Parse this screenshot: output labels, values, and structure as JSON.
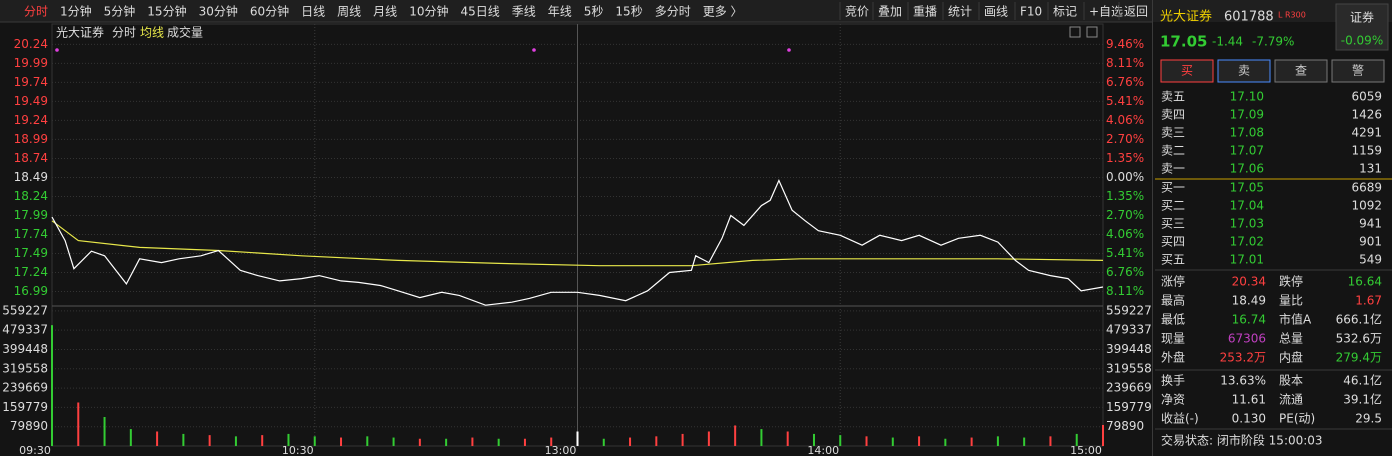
{
  "toolbar": {
    "left": [
      "分时",
      "1分钟",
      "5分钟",
      "15分钟",
      "30分钟",
      "60分钟",
      "日线",
      "周线",
      "月线",
      "10分钟",
      "45日线",
      "季线",
      "年线",
      "5秒",
      "15秒",
      "多分时",
      "更多 〉"
    ],
    "right": [
      "竞价",
      "叠加",
      "重播",
      "统计",
      "画线",
      "F10",
      "标记",
      "+自选",
      "返回"
    ]
  },
  "chart_data": {
    "type": "line",
    "title": "光大证券",
    "x": [
      0,
      3,
      5,
      9,
      12,
      17,
      20,
      25,
      29,
      34,
      38,
      43,
      47,
      52,
      57,
      61,
      66,
      70,
      75,
      79,
      84,
      89,
      93,
      99,
      105,
      109,
      114,
      120,
      125,
      131,
      136,
      141,
      146,
      147,
      150,
      153,
      155,
      158,
      162,
      164,
      166,
      169,
      172,
      175,
      180,
      185,
      189,
      194,
      198,
      203,
      207,
      212,
      216,
      220,
      223,
      228,
      232,
      235,
      240
    ],
    "series": [
      {
        "name": "分时",
        "color": "#ffffff",
        "values": [
          17.97,
          17.66,
          17.29,
          17.52,
          17.46,
          17.09,
          17.42,
          17.37,
          17.42,
          17.46,
          17.53,
          17.27,
          17.2,
          17.13,
          17.16,
          17.2,
          17.13,
          17.11,
          17.07,
          17.0,
          16.91,
          16.98,
          16.94,
          16.81,
          16.85,
          16.9,
          16.98,
          16.98,
          16.94,
          16.87,
          17.0,
          17.24,
          17.27,
          17.46,
          17.37,
          17.69,
          17.99,
          17.86,
          18.12,
          18.19,
          18.45,
          18.06,
          17.92,
          17.79,
          17.73,
          17.6,
          17.73,
          17.66,
          17.73,
          17.6,
          17.69,
          17.73,
          17.64,
          17.4,
          17.27,
          17.2,
          17.16,
          17.0,
          17.05
        ]
      },
      {
        "name": "均线",
        "color": "#e8e84a",
        "x": [
          0,
          6,
          20,
          38,
          57,
          79,
          102,
          125,
          146,
          160,
          171,
          194,
          216,
          240
        ],
        "values": [
          17.92,
          17.66,
          17.57,
          17.53,
          17.46,
          17.4,
          17.36,
          17.33,
          17.33,
          17.4,
          17.42,
          17.42,
          17.42,
          17.4
        ]
      }
    ],
    "xlim": [
      0,
      240
    ],
    "xticks": [
      {
        "value": 0,
        "label": "09:30"
      },
      {
        "value": 60,
        "label": "10:30"
      },
      {
        "value": 120,
        "label": "13:00"
      },
      {
        "value": 180,
        "label": "14:00"
      },
      {
        "value": 240,
        "label": "15:00"
      }
    ],
    "ylim": [
      16.8,
      20.35
    ],
    "yticks": [
      20.24,
      19.99,
      19.74,
      19.49,
      19.24,
      18.99,
      18.74,
      18.49,
      18.24,
      17.99,
      17.74,
      17.49,
      17.24,
      16.99
    ],
    "tick_colors": [
      "#ff4040",
      "#ff4040",
      "#ff4040",
      "#ff4040",
      "#ff4040",
      "#ff4040",
      "#ff4040",
      "#dddddd",
      "#33cc33",
      "#33cc33",
      "#33cc33",
      "#33cc33",
      "#33cc33",
      "#33cc33"
    ],
    "right_labels": [
      "9.46%",
      "8.11%",
      "6.76%",
      "5.41%",
      "4.06%",
      "2.70%",
      "1.35%",
      "0.00%",
      "1.35%",
      "2.70%",
      "4.06%",
      "5.41%",
      "6.76%",
      "8.11%"
    ],
    "volume": {
      "name": "成交量",
      "x": [
        0,
        6,
        12,
        18,
        24,
        30,
        36,
        42,
        48,
        54,
        60,
        66,
        72,
        78,
        84,
        90,
        96,
        102,
        108,
        114,
        120,
        126,
        132,
        138,
        144,
        150,
        156,
        162,
        168,
        174,
        180,
        186,
        192,
        198,
        204,
        210,
        216,
        222,
        228,
        234,
        240
      ],
      "values": [
        500000,
        180000,
        120000,
        70000,
        60000,
        50000,
        45000,
        40000,
        45000,
        50000,
        40000,
        35000,
        40000,
        35000,
        30000,
        30000,
        35000,
        30000,
        30000,
        35000,
        60000,
        30000,
        35000,
        40000,
        50000,
        60000,
        85000,
        70000,
        60000,
        50000,
        45000,
        40000,
        35000,
        40000,
        30000,
        35000,
        40000,
        35000,
        40000,
        50000,
        87000
      ],
      "colors": [
        "#33cc33",
        "#ff4040",
        "#33cc33",
        "#33cc33",
        "#ff4040",
        "#33cc33",
        "#ff4040",
        "#33cc33",
        "#ff4040",
        "#33cc33",
        "#33cc33",
        "#ff4040",
        "#33cc33",
        "#33cc33",
        "#ff4040",
        "#33cc33",
        "#ff4040",
        "#33cc33",
        "#ff4040",
        "#ff4040",
        "#ffffff",
        "#33cc33",
        "#ff4040",
        "#ff4040",
        "#ff4040",
        "#ff4040",
        "#ff4040",
        "#33cc33",
        "#ff4040",
        "#33cc33",
        "#33cc33",
        "#ff4040",
        "#33cc33",
        "#ff4040",
        "#33cc33",
        "#ff4040",
        "#33cc33",
        "#33cc33",
        "#ff4040",
        "#33cc33",
        "#ff4040"
      ],
      "ylim": [
        0,
        600000
      ],
      "yticks": [
        559227,
        479337,
        399448,
        319558,
        239669,
        159779,
        79890
      ]
    }
  },
  "quote": {
    "name": "光大证券",
    "code": "601788",
    "tag": "L R300",
    "sector": "证券",
    "sector_change": "-0.09%",
    "price": "17.05",
    "change": "-1.44",
    "change_pct": "-7.79%",
    "buttons": [
      "买",
      "卖",
      "查",
      "警"
    ],
    "asks": [
      [
        "卖五",
        "17.10",
        "6059"
      ],
      [
        "卖四",
        "17.09",
        "1426"
      ],
      [
        "卖三",
        "17.08",
        "4291"
      ],
      [
        "卖二",
        "17.07",
        "1159"
      ],
      [
        "卖一",
        "17.06",
        "131"
      ]
    ],
    "bids": [
      [
        "买一",
        "17.05",
        "6689"
      ],
      [
        "买二",
        "17.04",
        "1092"
      ],
      [
        "买三",
        "17.03",
        "941"
      ],
      [
        "买四",
        "17.02",
        "901"
      ],
      [
        "买五",
        "17.01",
        "549"
      ]
    ],
    "stats": [
      [
        "涨停",
        "20.34",
        "跌停",
        "16.64"
      ],
      [
        "最高",
        "18.49",
        "量比",
        "1.67"
      ],
      [
        "最低",
        "16.74",
        "市值A",
        "666.1亿"
      ],
      [
        "现量",
        "67306",
        "总量",
        "532.6万"
      ],
      [
        "外盘",
        "253.2万",
        "内盘",
        "279.4万"
      ],
      [
        "换手",
        "13.63%",
        "股本",
        "46.1亿"
      ],
      [
        "净资",
        "11.61",
        "流通",
        "39.1亿"
      ],
      [
        "收益(-)",
        "0.130",
        "PE(动)",
        "29.5"
      ]
    ],
    "status": "交易状态: 闭市阶段 15:00:03"
  }
}
